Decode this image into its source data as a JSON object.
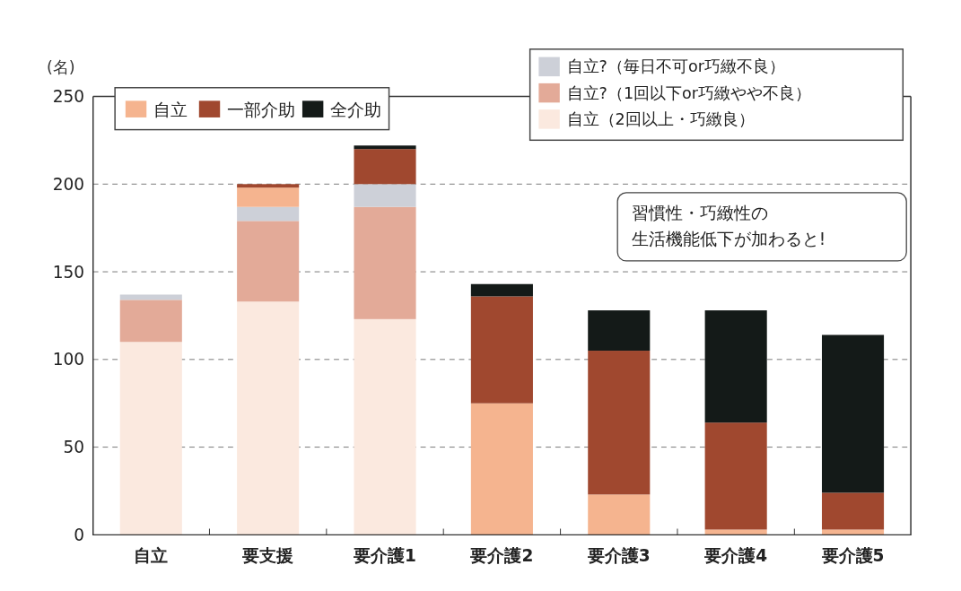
{
  "chart_data": {
    "type": "bar",
    "stacked": true,
    "ylabel": "(名)",
    "categories": [
      "自立",
      "要支援",
      "要介護1",
      "要介護2",
      "要介護3",
      "要介護4",
      "要介護5"
    ],
    "series": [
      {
        "name": "自立（2回以上・巧緻良）",
        "color": "#fbe9df",
        "values": [
          110,
          133,
          123,
          null,
          null,
          null,
          null
        ]
      },
      {
        "name": "自立?（1回以下or巧緻やや不良）",
        "color": "#e3aa98",
        "values": [
          24,
          46,
          64,
          null,
          null,
          null,
          null
        ]
      },
      {
        "name": "自立?（毎日不可or巧緻不良）",
        "color": "#cdd0d8",
        "values": [
          3,
          8,
          13,
          null,
          null,
          null,
          null
        ]
      },
      {
        "name": "自立",
        "color": "#f5b48f",
        "values": [
          null,
          11,
          null,
          75,
          23,
          3,
          3
        ]
      },
      {
        "name": "一部介助",
        "color": "#a0482f",
        "values": [
          null,
          2,
          20,
          61,
          82,
          61,
          21
        ]
      },
      {
        "name": "全介助",
        "color": "#141a18",
        "values": [
          null,
          null,
          2,
          7,
          23,
          64,
          90
        ]
      }
    ],
    "ylim": [
      0,
      250
    ],
    "yticks": [
      0,
      50,
      100,
      150,
      200,
      250
    ],
    "grid": "y",
    "legend": "top",
    "annotations": [
      "習慣性・巧緻性の生活機能低下が加わると!"
    ]
  }
}
